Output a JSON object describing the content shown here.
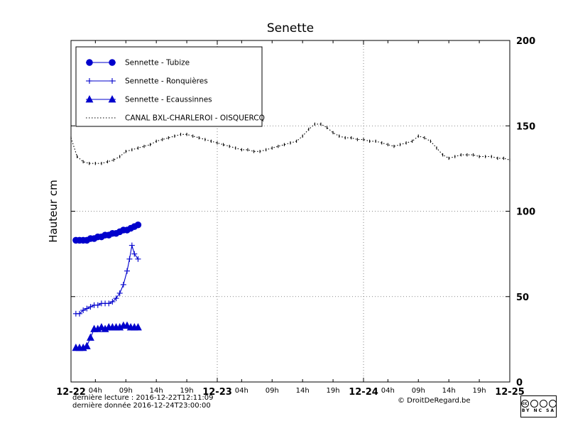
{
  "chart_data": {
    "type": "line",
    "title": "Senette",
    "ylabel": "Hauteur cm",
    "xlim": [
      0,
      72
    ],
    "ylim": [
      0,
      200
    ],
    "y_ticks": [
      0,
      50,
      100,
      150,
      200
    ],
    "x_major_ticks": [
      {
        "t": 0,
        "label": "12-22"
      },
      {
        "t": 24,
        "label": "12-23"
      },
      {
        "t": 48,
        "label": "12-24"
      },
      {
        "t": 72,
        "label": "12-25"
      }
    ],
    "x_minor_ticks": [
      {
        "t": 4,
        "label": "04h"
      },
      {
        "t": 9,
        "label": "09h"
      },
      {
        "t": 14,
        "label": "14h"
      },
      {
        "t": 19,
        "label": "19h"
      },
      {
        "t": 28,
        "label": "04h"
      },
      {
        "t": 33,
        "label": "09h"
      },
      {
        "t": 38,
        "label": "14h"
      },
      {
        "t": 43,
        "label": "19h"
      },
      {
        "t": 52,
        "label": "04h"
      },
      {
        "t": 57,
        "label": "09h"
      },
      {
        "t": 62,
        "label": "14h"
      },
      {
        "t": 67,
        "label": "19h"
      }
    ],
    "grid": {
      "h": [
        50,
        100,
        150
      ],
      "v": [
        24,
        48
      ]
    },
    "legend_position": "upper-left",
    "series": [
      {
        "name": "Sennette - Tubize",
        "color": "#0000cc",
        "marker": "circle",
        "line": "solid",
        "x": [
          0.8,
          1.4,
          2.0,
          2.6,
          3.2,
          3.8,
          4.4,
          5.0,
          5.6,
          6.2,
          6.8,
          7.4,
          8.0,
          8.6,
          9.2,
          9.8,
          10.4,
          11.0
        ],
        "y": [
          83,
          83,
          83,
          83,
          84,
          84,
          85,
          85,
          86,
          86,
          87,
          87,
          88,
          89,
          89,
          90,
          91,
          92
        ]
      },
      {
        "name": "Sennette - Ronquières",
        "color": "#0000cc",
        "marker": "plus",
        "line": "solid",
        "x": [
          0.8,
          1.4,
          2.0,
          2.6,
          3.2,
          3.8,
          4.4,
          5.0,
          5.6,
          6.2,
          6.8,
          7.4,
          8.0,
          8.6,
          9.2,
          9.6,
          10.0,
          10.4,
          11.0
        ],
        "y": [
          40,
          40,
          42,
          43,
          44,
          45,
          45,
          46,
          46,
          46,
          47,
          49,
          52,
          57,
          65,
          72,
          80,
          75,
          72
        ]
      },
      {
        "name": "Sennette - Ecaussinnes",
        "color": "#0000cc",
        "marker": "triangle",
        "line": "solid",
        "x": [
          0.8,
          1.4,
          2.0,
          2.6,
          3.2,
          3.8,
          4.4,
          5.0,
          5.6,
          6.2,
          6.8,
          7.4,
          8.0,
          8.6,
          9.2,
          9.8,
          10.4,
          11.0
        ],
        "y": [
          20,
          20,
          20,
          21,
          26,
          31,
          31,
          32,
          31,
          32,
          32,
          32,
          32,
          33,
          33,
          32,
          32,
          32
        ]
      },
      {
        "name": "CANAL BXL-CHARLEROI - OISQUERCQ",
        "color": "#000000",
        "marker": "vtick",
        "line": "dotted",
        "x": [
          0,
          1,
          2,
          3,
          4,
          5,
          6,
          7,
          8,
          9,
          10,
          11,
          12,
          13,
          14,
          15,
          16,
          17,
          18,
          19,
          20,
          21,
          22,
          23,
          24,
          25,
          26,
          27,
          28,
          29,
          30,
          31,
          32,
          33,
          34,
          35,
          36,
          37,
          38,
          39,
          40,
          41,
          42,
          43,
          44,
          45,
          46,
          47,
          48,
          49,
          50,
          51,
          52,
          53,
          54,
          55,
          56,
          57,
          58,
          59,
          60,
          61,
          62,
          63,
          64,
          65,
          66,
          67,
          68,
          69,
          70,
          71,
          72
        ],
        "y": [
          143,
          132,
          129,
          128,
          128,
          128,
          129,
          130,
          132,
          135,
          136,
          137,
          138,
          139,
          141,
          142,
          143,
          144,
          145,
          145,
          144,
          143,
          142,
          141,
          140,
          139,
          138,
          137,
          136,
          136,
          135,
          135,
          136,
          137,
          138,
          139,
          140,
          141,
          144,
          148,
          151,
          151,
          149,
          146,
          144,
          143,
          143,
          142,
          142,
          141,
          141,
          140,
          139,
          138,
          139,
          140,
          141,
          144,
          143,
          141,
          137,
          133,
          131,
          132,
          133,
          133,
          133,
          132,
          132,
          132,
          131,
          131,
          130
        ]
      }
    ]
  },
  "footer": {
    "last_reading": "dernière lecture : 2016-12-22T12:11:09",
    "last_data": "dernière donnée  2016-12-24T23:00:00",
    "copyright": "© DroitDeRegard.be",
    "license": {
      "cc": "cc",
      "labels": "BY NC SA"
    }
  }
}
